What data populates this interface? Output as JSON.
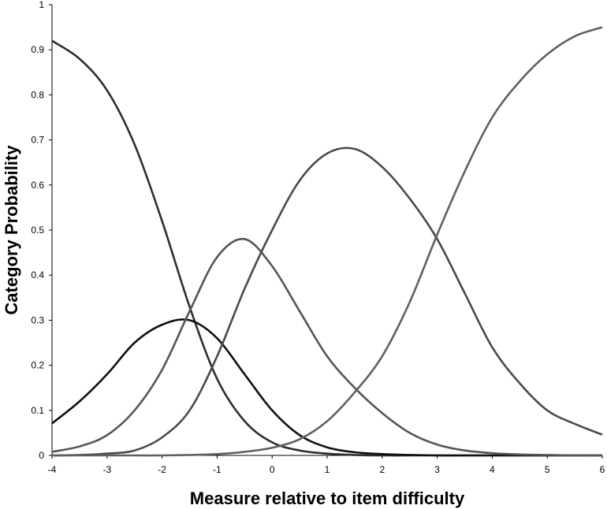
{
  "chart_data": {
    "type": "line",
    "title": "",
    "xlabel": "Measure relative to item difficulty",
    "ylabel": "Category Probability",
    "xlim": [
      -4,
      6
    ],
    "ylim": [
      0,
      1
    ],
    "x_ticks": [
      "-4",
      "-3",
      "-2",
      "-1",
      "0",
      "1",
      "2",
      "3",
      "4",
      "5",
      "6"
    ],
    "y_ticks": [
      "0",
      "0.1",
      "0.2",
      "0.3",
      "0.4",
      "0.5",
      "0.6",
      "0.7",
      "0.8",
      "0.9",
      "1"
    ],
    "grid": false,
    "legend": "none",
    "x": [
      -4,
      -3.5,
      -3,
      -2.5,
      -2,
      -1.5,
      -1,
      -0.5,
      0,
      0.5,
      1,
      1.5,
      2,
      2.5,
      3,
      3.5,
      4,
      4.5,
      5,
      5.5,
      6
    ],
    "series": [
      {
        "color": "#2e2e2e",
        "values": [
          0.92,
          0.88,
          0.81,
          0.69,
          0.52,
          0.33,
          0.17,
          0.076,
          0.029,
          0.011,
          0.004,
          0.001,
          0.0,
          0.0,
          0.0,
          0.0,
          0.0,
          0.0,
          0.0,
          0.0,
          0.0
        ]
      },
      {
        "color": "#111111",
        "values": [
          0.071,
          0.12,
          0.18,
          0.25,
          0.29,
          0.3,
          0.26,
          0.18,
          0.1,
          0.045,
          0.018,
          0.007,
          0.003,
          0.001,
          0.0,
          0.0,
          0.0,
          0.0,
          0.0,
          0.0,
          0.0
        ]
      },
      {
        "color": "#555555",
        "values": [
          0.008,
          0.02,
          0.045,
          0.1,
          0.19,
          0.32,
          0.44,
          0.48,
          0.42,
          0.32,
          0.22,
          0.15,
          0.094,
          0.05,
          0.024,
          0.011,
          0.005,
          0.002,
          0.001,
          0.0,
          0.0
        ]
      },
      {
        "color": "#4a4a4a",
        "values": [
          0.0,
          0.001,
          0.004,
          0.011,
          0.04,
          0.1,
          0.22,
          0.37,
          0.5,
          0.61,
          0.67,
          0.68,
          0.64,
          0.57,
          0.48,
          0.36,
          0.24,
          0.16,
          0.1,
          0.07,
          0.046
        ]
      },
      {
        "color": "#606060",
        "values": [
          0.0,
          0.0,
          0.0,
          0.0,
          0.0,
          0.001,
          0.003,
          0.008,
          0.017,
          0.036,
          0.076,
          0.14,
          0.22,
          0.34,
          0.49,
          0.63,
          0.75,
          0.83,
          0.89,
          0.93,
          0.95
        ]
      }
    ]
  }
}
